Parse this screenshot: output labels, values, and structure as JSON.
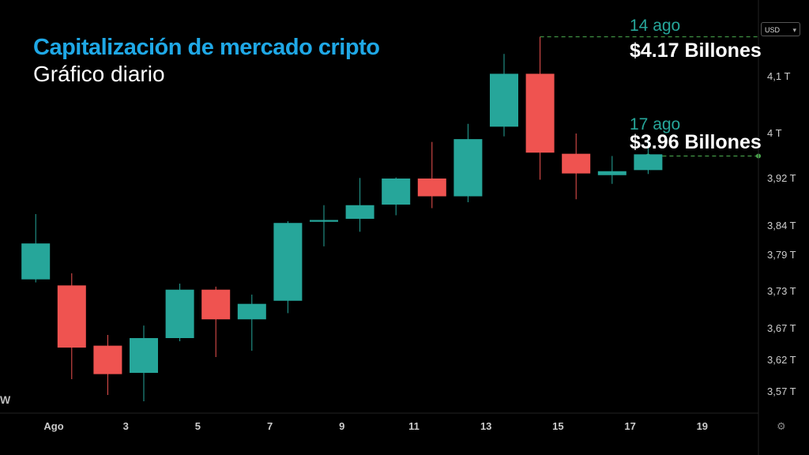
{
  "header": {
    "title": "Capitalización de mercado cripto",
    "subtitle": "Gráfico diario"
  },
  "currency_selector": {
    "label": "USD"
  },
  "watermark": "W",
  "annotations": [
    {
      "date": "14 ago",
      "value": "$4.17 Billones"
    },
    {
      "date": "17 ago",
      "value": "$3.96 Billones"
    }
  ],
  "colors": {
    "up": "#26a69a",
    "down": "#ef5350",
    "title": "#1fa8e6",
    "guide": "#4caf50"
  },
  "chart_data": {
    "type": "candlestick",
    "x_tick_labels": [
      {
        "day": 1,
        "label": "Ago"
      },
      {
        "day": 3,
        "label": "3"
      },
      {
        "day": 5,
        "label": "5"
      },
      {
        "day": 7,
        "label": "7"
      },
      {
        "day": 9,
        "label": "9"
      },
      {
        "day": 11,
        "label": "11"
      },
      {
        "day": 13,
        "label": "13"
      },
      {
        "day": 15,
        "label": "15"
      },
      {
        "day": 17,
        "label": "17"
      },
      {
        "day": 19,
        "label": "19"
      }
    ],
    "y_tick_labels": [
      {
        "value": 3.57,
        "label": "3,57 T"
      },
      {
        "value": 3.62,
        "label": "3,62 T"
      },
      {
        "value": 3.67,
        "label": "3,67 T"
      },
      {
        "value": 3.73,
        "label": "3,73 T"
      },
      {
        "value": 3.79,
        "label": "3,79 T"
      },
      {
        "value": 3.84,
        "label": "3,84 T"
      },
      {
        "value": 3.92,
        "label": "3,92 T"
      },
      {
        "value": 4.0,
        "label": "4 T"
      },
      {
        "value": 4.1,
        "label": "4,1 T"
      }
    ],
    "y_unit": "T USD",
    "x_range": [
      0.35,
      21.5
    ],
    "grid": false,
    "candles": [
      {
        "day": 0.5,
        "open": 3.75,
        "high": 3.86,
        "low": 3.745,
        "close": 3.81
      },
      {
        "day": 1.5,
        "open": 3.74,
        "high": 3.76,
        "low": 3.59,
        "close": 3.64
      },
      {
        "day": 2.5,
        "open": 3.643,
        "high": 3.66,
        "low": 3.565,
        "close": 3.598
      },
      {
        "day": 3.5,
        "open": 3.6,
        "high": 3.675,
        "low": 3.555,
        "close": 3.655
      },
      {
        "day": 4.5,
        "open": 3.655,
        "high": 3.743,
        "low": 3.65,
        "close": 3.733
      },
      {
        "day": 5.5,
        "open": 3.733,
        "high": 3.738,
        "low": 3.625,
        "close": 3.685
      },
      {
        "day": 6.5,
        "open": 3.685,
        "high": 3.725,
        "low": 3.635,
        "close": 3.71
      },
      {
        "day": 7.5,
        "open": 3.715,
        "high": 3.848,
        "low": 3.695,
        "close": 3.845
      },
      {
        "day": 8.5,
        "open": 3.847,
        "high": 3.875,
        "low": 3.805,
        "close": 3.85
      },
      {
        "day": 9.5,
        "open": 3.852,
        "high": 3.921,
        "low": 3.83,
        "close": 3.875
      },
      {
        "day": 10.5,
        "open": 3.876,
        "high": 3.922,
        "low": 3.858,
        "close": 3.92
      },
      {
        "day": 11.5,
        "open": 3.92,
        "high": 3.985,
        "low": 3.87,
        "close": 3.89
      },
      {
        "day": 12.5,
        "open": 3.89,
        "high": 4.017,
        "low": 3.88,
        "close": 3.99
      },
      {
        "day": 13.5,
        "open": 4.012,
        "high": 4.14,
        "low": 3.995,
        "close": 4.105
      },
      {
        "day": 14.5,
        "open": 4.105,
        "high": 4.17,
        "low": 3.918,
        "close": 3.966
      },
      {
        "day": 15.5,
        "open": 3.964,
        "high": 4.0,
        "low": 3.885,
        "close": 3.929
      },
      {
        "day": 16.5,
        "open": 3.926,
        "high": 3.96,
        "low": 3.911,
        "close": 3.933
      },
      {
        "day": 17.5,
        "open": 3.935,
        "high": 3.99,
        "low": 3.928,
        "close": 3.963
      }
    ],
    "reference_lines": [
      {
        "value": 4.17,
        "from_day": 14.5
      },
      {
        "value": 3.96,
        "from_day": 17.5
      }
    ]
  }
}
